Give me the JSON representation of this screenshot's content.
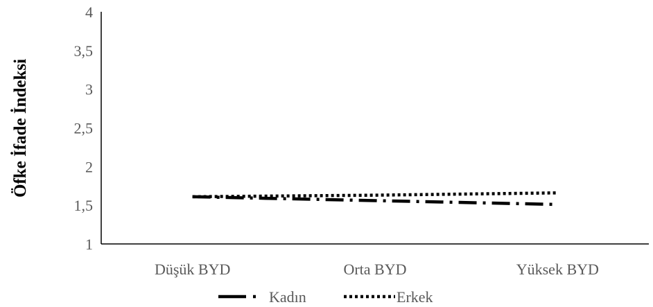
{
  "chart_data": {
    "type": "line",
    "title": "",
    "xlabel": "",
    "ylabel": "Öfke İfade İndeksi",
    "categories": [
      "Düşük BYD",
      "Orta BYD",
      "Yüksek BYD"
    ],
    "series": [
      {
        "name": "Kadın",
        "values": [
          1.61,
          1.56,
          1.51
        ],
        "color": "#000000",
        "dash": "long-dash-dot"
      },
      {
        "name": "Erkek",
        "values": [
          1.61,
          1.63,
          1.66
        ],
        "color": "#000000",
        "dash": "dotted"
      }
    ],
    "ylim": [
      1,
      4
    ],
    "yticks": [
      "1",
      "1,5",
      "2",
      "2,5",
      "3",
      "3,5",
      "4"
    ],
    "grid": false,
    "legend": "bottom"
  }
}
